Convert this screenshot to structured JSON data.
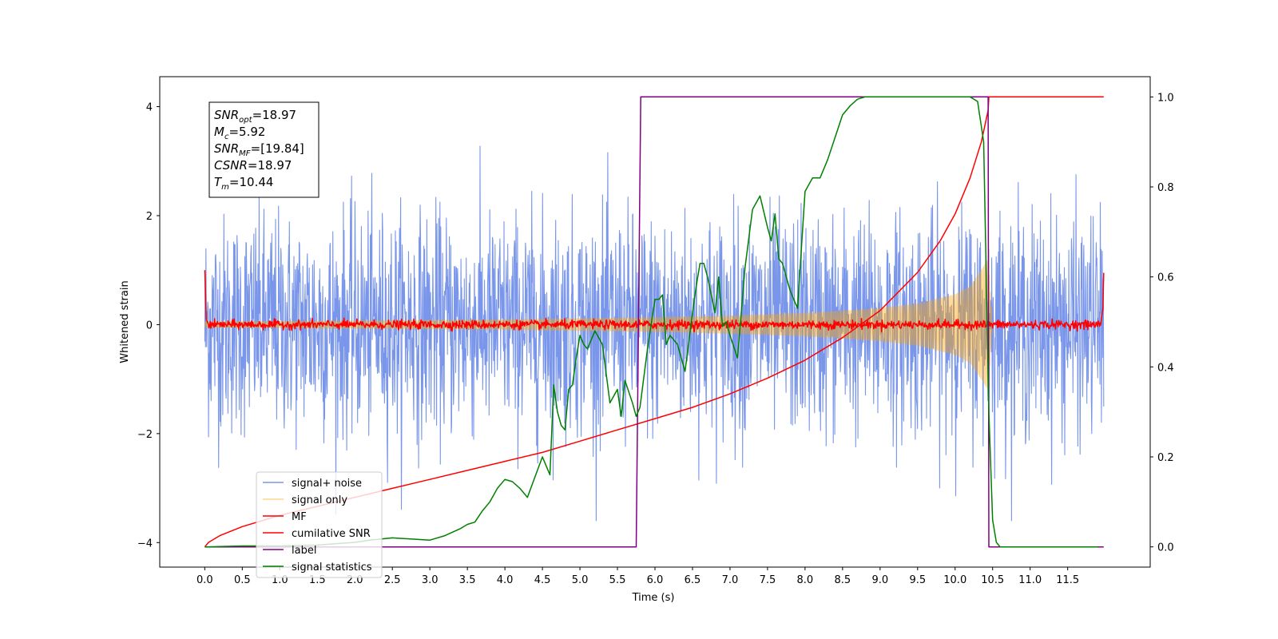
{
  "chart_data": {
    "type": "line",
    "title": "",
    "xlabel": "Time (s)",
    "ylabel": "Whitened strain",
    "xlim": [
      -0.6,
      12.6
    ],
    "ylim": [
      -4.45,
      4.55
    ],
    "y2lim": [
      -0.045,
      1.045
    ],
    "x_ticks": [
      0.0,
      0.5,
      1.0,
      1.5,
      2.0,
      2.5,
      3.0,
      3.5,
      4.0,
      4.5,
      5.0,
      5.5,
      6.0,
      6.5,
      7.0,
      7.5,
      8.0,
      8.5,
      9.0,
      9.5,
      10.0,
      10.5,
      11.0,
      11.5
    ],
    "x_tick_labels": [
      "0.0",
      "0.5",
      "1.0",
      "1.5",
      "2.0",
      "2.5",
      "3.0",
      "3.5",
      "4.0",
      "4.5",
      "5.0",
      "5.5",
      "6.0",
      "6.5",
      "7.0",
      "7.5",
      "8.0",
      "8.5",
      "9.0",
      "9.5",
      "10.0",
      "10.5",
      "11.0",
      "11.5"
    ],
    "y_ticks": [
      -4,
      -2,
      0,
      2,
      4
    ],
    "y_tick_labels": [
      "−4",
      "−2",
      "0",
      "2",
      "4"
    ],
    "y2_ticks": [
      0.0,
      0.2,
      0.4,
      0.6,
      0.8,
      1.0
    ],
    "y2_tick_labels": [
      "0.0",
      "0.2",
      "0.4",
      "0.6",
      "0.8",
      "1.0"
    ],
    "grid": false,
    "legend_position": "lower-left",
    "info_box": {
      "position": "top-left",
      "lines": [
        {
          "main": "SNR",
          "sub": "opt",
          "value": "=18.97"
        },
        {
          "main": "M",
          "sub": "c",
          "value": "=5.92"
        },
        {
          "main": "SNR",
          "sub": "MF",
          "value": "=[19.84]"
        },
        {
          "main": "CSNR",
          "sub": "",
          "value": "=18.97"
        },
        {
          "main": "T",
          "sub": "m",
          "value": "=10.44"
        }
      ]
    },
    "series": [
      {
        "name": "signal+ noise",
        "color": "#4169e1",
        "opacity": 0.7,
        "axis": "left",
        "kind": "noise-band",
        "x_range": [
          0.0,
          11.98
        ],
        "spread_std": 1.0,
        "peak_extent": [
          -3.6,
          3.6
        ]
      },
      {
        "name": "signal only",
        "color": "#ffa500",
        "opacity": 0.45,
        "axis": "left",
        "kind": "chirp-envelope",
        "envelope_x": [
          0.0,
          1.0,
          2.0,
          3.0,
          4.0,
          5.0,
          6.0,
          7.0,
          8.0,
          8.5,
          9.0,
          9.5,
          10.0,
          10.2,
          10.35,
          10.44,
          10.5
        ],
        "envelope_y": [
          0.05,
          0.06,
          0.07,
          0.08,
          0.09,
          0.11,
          0.13,
          0.16,
          0.21,
          0.25,
          0.3,
          0.38,
          0.55,
          0.7,
          1.0,
          1.2,
          0.0
        ]
      },
      {
        "name": "MF",
        "color": "#ff0000",
        "axis": "left",
        "kind": "noise-line",
        "x_range": [
          0.0,
          11.98
        ],
        "spread_std": 0.04,
        "edge_start": [
          [
            0.0,
            1.0
          ],
          [
            0.02,
            0.1
          ],
          [
            0.05,
            0.0
          ]
        ],
        "edge_end": [
          [
            11.94,
            0.0
          ],
          [
            11.97,
            0.3
          ],
          [
            11.98,
            0.95
          ]
        ]
      },
      {
        "name": "cumilative SNR",
        "color": "#ff0000",
        "axis": "right",
        "kind": "line",
        "x": [
          0.0,
          0.05,
          0.2,
          0.5,
          1.0,
          1.5,
          2.0,
          2.5,
          3.0,
          3.5,
          4.0,
          4.5,
          5.0,
          5.5,
          6.0,
          6.5,
          7.0,
          7.5,
          8.0,
          8.5,
          9.0,
          9.5,
          9.8,
          10.0,
          10.2,
          10.35,
          10.44,
          10.45,
          11.0,
          11.98
        ],
        "y": [
          0.0,
          0.01,
          0.025,
          0.045,
          0.07,
          0.09,
          0.11,
          0.13,
          0.15,
          0.17,
          0.19,
          0.21,
          0.235,
          0.26,
          0.285,
          0.31,
          0.34,
          0.375,
          0.415,
          0.465,
          0.525,
          0.61,
          0.68,
          0.74,
          0.82,
          0.9,
          0.97,
          1.0,
          1.0,
          1.0
        ]
      },
      {
        "name": "label",
        "color": "#800080",
        "axis": "right",
        "kind": "line",
        "x": [
          0.0,
          5.75,
          5.81,
          10.44,
          10.45,
          11.98
        ],
        "y": [
          0.0,
          0.0,
          1.0,
          1.0,
          0.0,
          0.0
        ]
      },
      {
        "name": "signal statistics",
        "color": "#008000",
        "axis": "right",
        "kind": "line",
        "x": [
          0.0,
          0.5,
          1.0,
          1.5,
          2.0,
          2.2,
          2.5,
          3.0,
          3.2,
          3.4,
          3.5,
          3.6,
          3.7,
          3.8,
          3.9,
          4.0,
          4.1,
          4.2,
          4.3,
          4.4,
          4.5,
          4.55,
          4.6,
          4.65,
          4.7,
          4.75,
          4.8,
          4.85,
          4.9,
          4.95,
          5.0,
          5.05,
          5.1,
          5.2,
          5.3,
          5.4,
          5.5,
          5.55,
          5.6,
          5.7,
          5.75,
          5.8,
          5.9,
          6.0,
          6.05,
          6.1,
          6.15,
          6.2,
          6.3,
          6.4,
          6.5,
          6.55,
          6.6,
          6.65,
          6.7,
          6.8,
          6.85,
          6.9,
          6.95,
          7.0,
          7.1,
          7.2,
          7.3,
          7.4,
          7.5,
          7.55,
          7.6,
          7.65,
          7.7,
          7.8,
          7.9,
          8.0,
          8.1,
          8.2,
          8.3,
          8.4,
          8.5,
          8.6,
          8.7,
          8.8,
          9.0,
          9.3,
          9.6,
          10.0,
          10.2,
          10.3,
          10.38,
          10.45,
          10.5,
          10.55,
          10.6,
          10.8,
          11.0,
          11.5,
          11.9
        ],
        "y": [
          0.0,
          0.002,
          0.002,
          0.004,
          0.01,
          0.015,
          0.02,
          0.015,
          0.025,
          0.04,
          0.05,
          0.055,
          0.08,
          0.1,
          0.13,
          0.15,
          0.145,
          0.13,
          0.11,
          0.155,
          0.2,
          0.18,
          0.16,
          0.36,
          0.3,
          0.27,
          0.26,
          0.35,
          0.36,
          0.42,
          0.47,
          0.45,
          0.44,
          0.48,
          0.45,
          0.32,
          0.35,
          0.29,
          0.37,
          0.32,
          0.29,
          0.31,
          0.44,
          0.55,
          0.55,
          0.56,
          0.45,
          0.47,
          0.45,
          0.39,
          0.52,
          0.58,
          0.63,
          0.63,
          0.6,
          0.52,
          0.6,
          0.49,
          0.5,
          0.47,
          0.42,
          0.62,
          0.75,
          0.78,
          0.71,
          0.68,
          0.74,
          0.64,
          0.63,
          0.57,
          0.53,
          0.79,
          0.82,
          0.82,
          0.86,
          0.91,
          0.96,
          0.98,
          0.995,
          1.0,
          1.0,
          1.0,
          1.0,
          1.0,
          1.0,
          0.99,
          0.9,
          0.3,
          0.06,
          0.01,
          0.0,
          0.0,
          0.0,
          0.0,
          0.0
        ]
      }
    ]
  }
}
